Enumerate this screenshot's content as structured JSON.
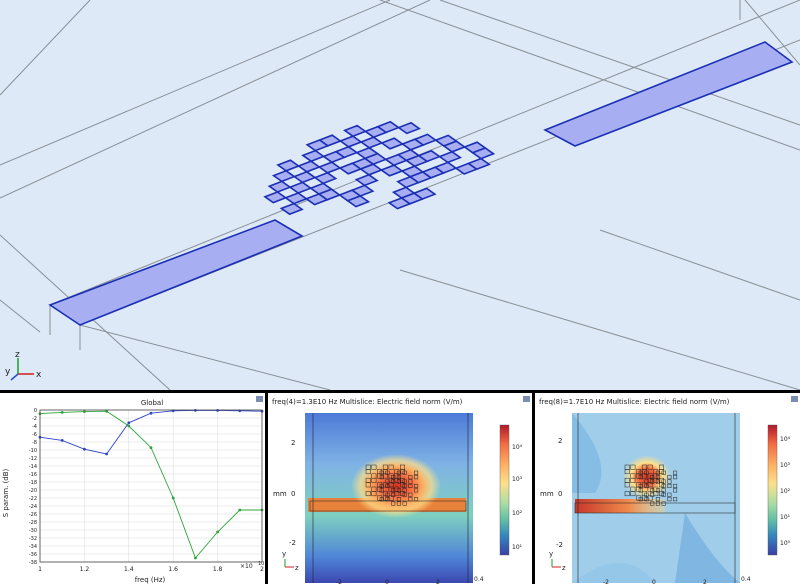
{
  "geometry_view": {
    "axes_triad": {
      "x": "x",
      "y": "y",
      "z": "z"
    }
  },
  "chart_data": [
    {
      "type": "line",
      "title": "Global",
      "xlabel": "freq (Hz)",
      "ylabel": "S param. (dB)",
      "x_multiplier": "×10",
      "x_multiplier_exp": "10",
      "xlim": [
        1.0,
        2.0
      ],
      "ylim": [
        -38,
        0
      ],
      "x_ticks": [
        "1",
        "1.2",
        "1.4",
        "1.6",
        "1.8",
        "2"
      ],
      "y_ticks": [
        "0",
        "-2",
        "-4",
        "-6",
        "-8",
        "-10",
        "-12",
        "-14",
        "-16",
        "-18",
        "-20",
        "-22",
        "-24",
        "-26",
        "-28",
        "-30",
        "-32",
        "-34",
        "-36",
        "-38"
      ],
      "grid": true,
      "series": [
        {
          "color": "#3046c8",
          "x": [
            1.0,
            1.1,
            1.2,
            1.3,
            1.4,
            1.5,
            1.6,
            1.7,
            1.8,
            1.9,
            2.0
          ],
          "y": [
            -6.8,
            -7.6,
            -9.8,
            -11.0,
            -3.2,
            -0.8,
            -0.2,
            -0.1,
            -0.1,
            -0.2,
            -0.3
          ]
        },
        {
          "color": "#2fa33a",
          "x": [
            1.0,
            1.1,
            1.2,
            1.3,
            1.4,
            1.5,
            1.6,
            1.7,
            1.8,
            1.9,
            2.0
          ],
          "y": [
            -0.9,
            -0.6,
            -0.4,
            -0.3,
            -4.0,
            -9.4,
            -22.0,
            -37.0,
            -30.5,
            -25.0,
            -25.0
          ]
        }
      ]
    },
    {
      "type": "heatmap",
      "title": "freq(4)=1.3E10 Hz  Multislice: Electric field norm (V/m)",
      "ylabel": "mm",
      "y_ticks": [
        "2",
        "0",
        "-2"
      ],
      "x_ticks": [
        "-2",
        "0",
        "2"
      ],
      "x_edge_label": "0.4",
      "colorbar_ticks": [
        "10⁴",
        "10³",
        "10²",
        "10¹"
      ],
      "colorbar_colors": [
        "#b2182b",
        "#f46d43",
        "#fdae61",
        "#fee08b",
        "#abdda4",
        "#66c2a5",
        "#3288bd",
        "#3b3fa8"
      ],
      "axis_y": "y",
      "axis_z": "z"
    },
    {
      "type": "heatmap",
      "title": "freq(8)=1.7E10 Hz  Multislice: Electric field norm (V/m)",
      "ylabel": "mm",
      "y_ticks": [
        "2",
        "0",
        "-2"
      ],
      "x_ticks": [
        "-2",
        "0",
        "2"
      ],
      "x_edge_label": "0.4",
      "colorbar_ticks": [
        "10⁴",
        "10³",
        "10²",
        "10¹",
        "10⁰"
      ],
      "colorbar_colors": [
        "#b2182b",
        "#f46d43",
        "#fdae61",
        "#fee08b",
        "#abdda4",
        "#66c2a5",
        "#3288bd",
        "#3b3fa8"
      ],
      "axis_y": "y",
      "axis_z": "z"
    }
  ]
}
